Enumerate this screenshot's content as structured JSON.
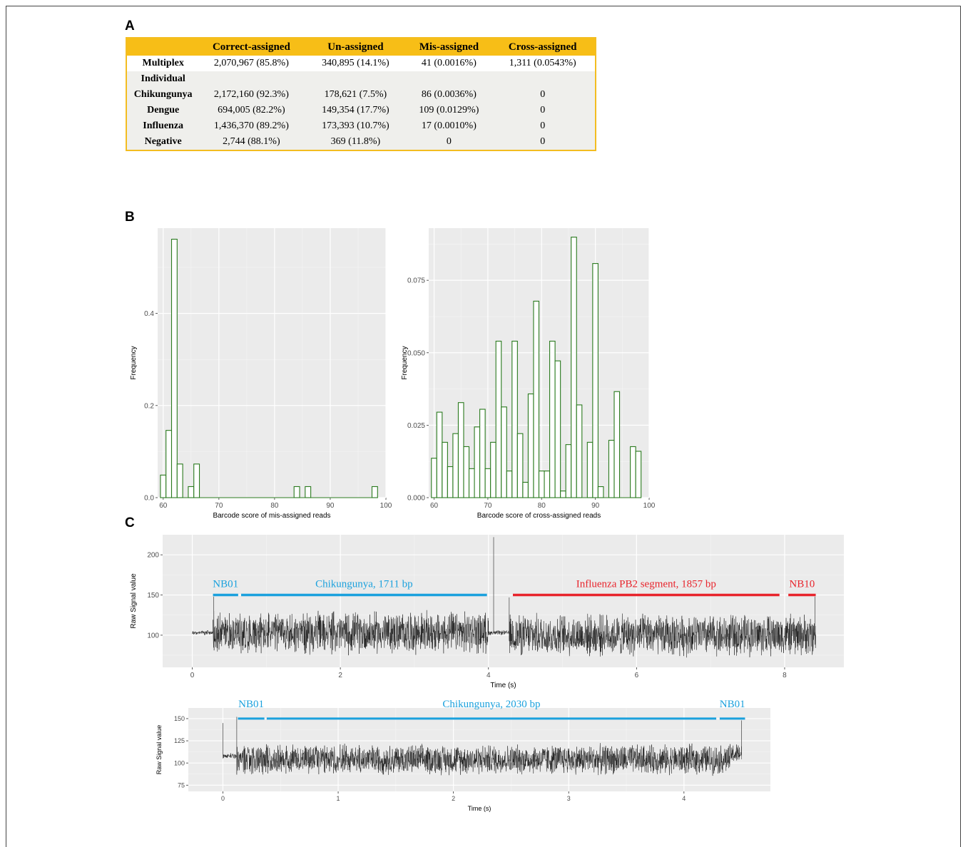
{
  "panels": {
    "a": "A",
    "b": "B",
    "c": "C"
  },
  "table": {
    "headers": [
      "",
      "Correct-assigned",
      "Un-assigned",
      "Mis-assigned",
      "Cross-assigned"
    ],
    "rows": [
      {
        "name": "Multiplex",
        "cells": [
          "2,070,967 (85.8%)",
          "340,895 (14.1%)",
          "41 (0.0016%)",
          "1,311 (0.0543%)"
        ]
      },
      {
        "name": "Individual",
        "cells": [
          "",
          "",
          "",
          ""
        ]
      },
      {
        "name": "Chikungunya",
        "cells": [
          "2,172,160 (92.3%)",
          "178,621 (7.5%)",
          "86 (0.0036%)",
          "0"
        ]
      },
      {
        "name": "Dengue",
        "cells": [
          "694,005 (82.2%)",
          "149,354 (17.7%)",
          "109 (0.0129%)",
          "0"
        ]
      },
      {
        "name": "Influenza",
        "cells": [
          "1,436,370 (89.2%)",
          "173,393 (10.7%)",
          "17 (0.0010%)",
          "0"
        ]
      },
      {
        "name": "Negative",
        "cells": [
          "2,744 (88.1%)",
          "369 (11.8%)",
          "0",
          "0"
        ]
      }
    ]
  },
  "chart_data": [
    {
      "type": "bar",
      "ylabel": "Frequency",
      "xlabel": "Barcode score of mis-assigned reads",
      "xlim": [
        59,
        100
      ],
      "ylim": [
        0,
        0.585
      ],
      "xticks": [
        60,
        70,
        80,
        90,
        100
      ],
      "yticks": [
        0.0,
        0.2,
        0.4
      ],
      "ytick_labels": [
        "0.0",
        "0.2",
        "0.4"
      ],
      "bin_width": 1,
      "bins": [
        [
          59.5,
          0.049
        ],
        [
          60.5,
          0.146
        ],
        [
          61.5,
          0.561
        ],
        [
          62.5,
          0.073
        ],
        [
          64.5,
          0.024
        ],
        [
          65.5,
          0.073
        ],
        [
          83.5,
          0.024
        ],
        [
          85.5,
          0.024
        ],
        [
          97.5,
          0.024
        ]
      ],
      "color": "#2a7a1e"
    },
    {
      "type": "bar",
      "ylabel": "Frequency",
      "xlabel": "Barcode score of cross-assigned reads",
      "xlim": [
        59,
        100
      ],
      "ylim": [
        0,
        0.093
      ],
      "xticks": [
        60,
        70,
        80,
        90,
        100
      ],
      "yticks": [
        0.0,
        0.025,
        0.05,
        0.075
      ],
      "ytick_labels": [
        "0.000",
        "0.025",
        "0.050",
        "0.075"
      ],
      "bin_width": 1,
      "bins": [
        [
          59.5,
          0.0136
        ],
        [
          60.5,
          0.0295
        ],
        [
          61.5,
          0.0191
        ],
        [
          62.5,
          0.0107
        ],
        [
          63.5,
          0.0221
        ],
        [
          64.5,
          0.0328
        ],
        [
          65.5,
          0.0176
        ],
        [
          66.5,
          0.01
        ],
        [
          67.5,
          0.0244
        ],
        [
          68.5,
          0.0305
        ],
        [
          69.5,
          0.01
        ],
        [
          70.5,
          0.0191
        ],
        [
          71.5,
          0.054
        ],
        [
          72.5,
          0.0313
        ],
        [
          73.5,
          0.0092
        ],
        [
          74.5,
          0.054
        ],
        [
          75.5,
          0.0221
        ],
        [
          76.5,
          0.0053
        ],
        [
          77.5,
          0.0358
        ],
        [
          78.5,
          0.0678
        ],
        [
          79.5,
          0.0092
        ],
        [
          80.5,
          0.0092
        ],
        [
          81.5,
          0.054
        ],
        [
          82.5,
          0.0472
        ],
        [
          83.5,
          0.0023
        ],
        [
          84.5,
          0.0183
        ],
        [
          85.5,
          0.0899
        ],
        [
          86.5,
          0.032
        ],
        [
          87.5,
          0.0
        ],
        [
          88.5,
          0.0191
        ],
        [
          89.5,
          0.0808
        ],
        [
          90.5,
          0.0038
        ],
        [
          91.5,
          0.0
        ],
        [
          92.5,
          0.0198
        ],
        [
          93.5,
          0.0366
        ],
        [
          94.5,
          0.0
        ],
        [
          95.5,
          0.0
        ],
        [
          96.5,
          0.0176
        ],
        [
          97.5,
          0.016
        ]
      ],
      "color": "#2a7a1e"
    },
    {
      "type": "line",
      "ylabel": "Raw Signal value",
      "xlabel": "Time (s)",
      "xlim": [
        -0.4,
        8.8
      ],
      "ylim": [
        60,
        225
      ],
      "xticks": [
        0,
        2,
        4,
        6,
        8
      ],
      "yticks": [
        100,
        150,
        200
      ],
      "signal_segments": [
        {
          "start": 0.0,
          "end": 0.28,
          "mean": 103,
          "amp": 3
        },
        {
          "start": 0.28,
          "end": 4.0,
          "mean": 103,
          "amp": 26
        },
        {
          "start": 4.0,
          "end": 4.28,
          "mean": 103,
          "amp": 3
        },
        {
          "start": 4.28,
          "end": 8.42,
          "mean": 100,
          "amp": 26
        }
      ],
      "spikes": [
        [
          0.29,
          148
        ],
        [
          4.07,
          222
        ],
        [
          4.28,
          147
        ],
        [
          8.41,
          148
        ]
      ],
      "annotations": [
        {
          "label": "NB01",
          "start": 0.28,
          "end": 0.62,
          "color": "#1ba1dd"
        },
        {
          "label": "Chikungunya, 1711 bp",
          "start": 0.66,
          "end": 3.98,
          "color": "#1ba1dd"
        },
        {
          "label": "Influenza PB2 segment, 1857 bp",
          "start": 4.33,
          "end": 7.93,
          "color": "#e8242c"
        },
        {
          "label": "NB10",
          "start": 8.05,
          "end": 8.42,
          "color": "#e8242c"
        }
      ]
    },
    {
      "type": "line",
      "ylabel": "Raw Signal value",
      "xlabel": "Time (s)",
      "xlim": [
        -0.3,
        4.75
      ],
      "ylim": [
        68,
        162
      ],
      "xticks": [
        0,
        1,
        2,
        3,
        4
      ],
      "yticks": [
        75,
        100,
        125,
        150
      ],
      "signal_segments": [
        {
          "start": 0.0,
          "end": 0.12,
          "mean": 108,
          "amp": 3
        },
        {
          "start": 0.12,
          "end": 4.4,
          "mean": 104,
          "amp": 17
        },
        {
          "start": 4.4,
          "end": 4.5,
          "mean": 110,
          "amp": 12
        }
      ],
      "spikes": [
        [
          0.0,
          145
        ],
        [
          0.12,
          152
        ],
        [
          4.5,
          148
        ]
      ],
      "annotations": [
        {
          "label": "NB01",
          "start": 0.13,
          "end": 0.36,
          "color": "#1ba1dd"
        },
        {
          "label": "Chikungunya, 2030 bp",
          "start": 0.38,
          "end": 4.28,
          "color": "#1ba1dd"
        },
        {
          "label": "NB01",
          "start": 4.31,
          "end": 4.53,
          "color": "#1ba1dd"
        }
      ]
    }
  ]
}
